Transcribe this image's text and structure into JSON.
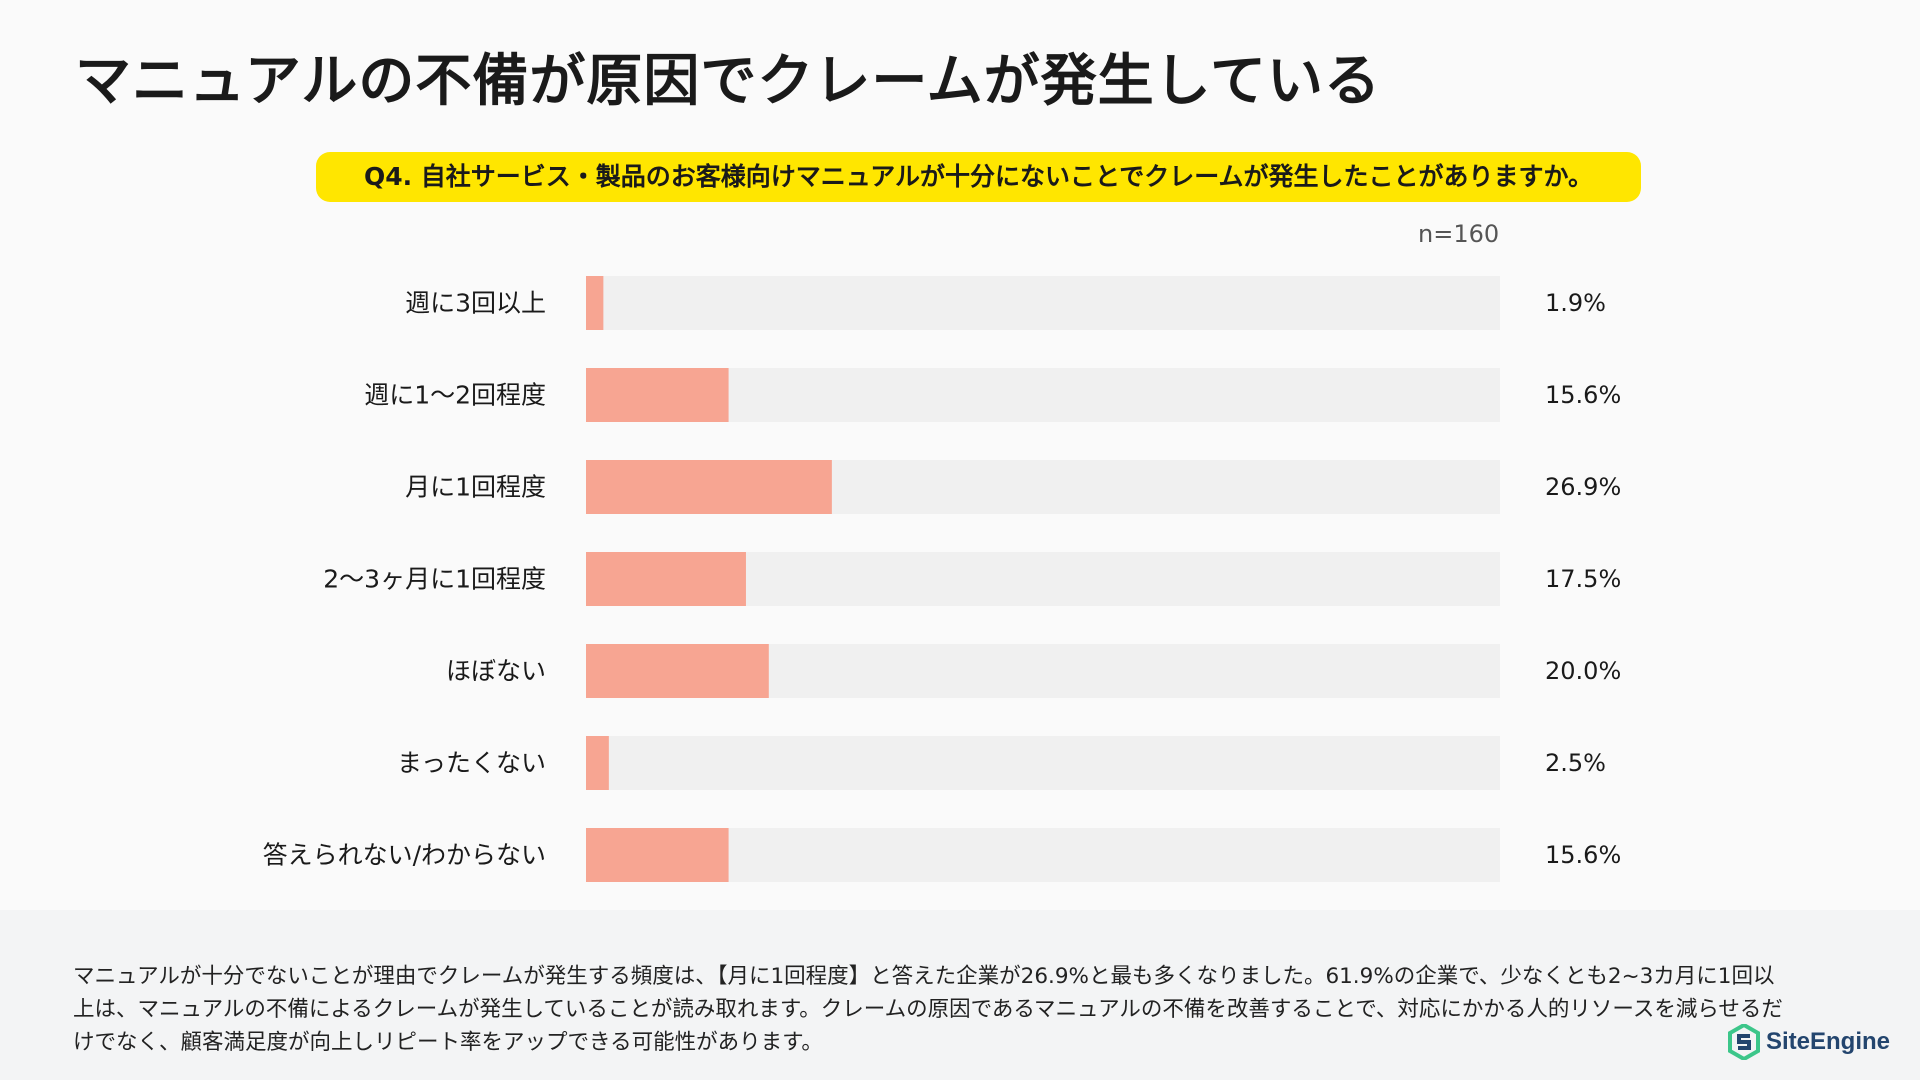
{
  "title": "マニュアルの不備が原因でクレームが発生している",
  "question": "Q4. 自社サービス・製品のお客様向けマニュアルが十分にないことでクレームが発生したことがありますか。",
  "sample_size": "n=160",
  "colors": {
    "bar": "#f7a592",
    "track": "#f0f0f0",
    "highlight": "#ffe600",
    "logo_green": "#3cc68a",
    "logo_blue": "#23456e"
  },
  "chart_data": {
    "type": "bar",
    "orientation": "horizontal",
    "categories": [
      "週に3回以上",
      "週に1〜2回程度",
      "月に1回程度",
      "2〜3ヶ月に1回程度",
      "ほぼない",
      "まったくない",
      "答えられない/わからない"
    ],
    "values": [
      1.9,
      15.6,
      26.9,
      17.5,
      20.0,
      2.5,
      15.6
    ],
    "value_labels": [
      "1.9%",
      "15.6%",
      "26.9%",
      "17.5%",
      "20.0%",
      "2.5%",
      "15.6%"
    ],
    "unit": "%",
    "xlim": [
      0,
      100
    ],
    "grid": false
  },
  "footer": {
    "text": "マニュアルが十分でないことが理由でクレームが発生する頻度は、【月に1回程度】と答えた企業が26.9%と最も多くなりました。61.9%の企業で、少なくとも2~3カ月に1回以上は、マニュアルの不備によるクレームが発生していることが読み取れます。クレームの原因であるマニュアルの不備を改善することで、対応にかかる人的リソースを減らせるだけでなく、顧客満足度が向上しリピート率をアップできる可能性があります。"
  },
  "logo": {
    "text": "SiteEngine",
    "icon": "site-engine-logo-icon"
  }
}
